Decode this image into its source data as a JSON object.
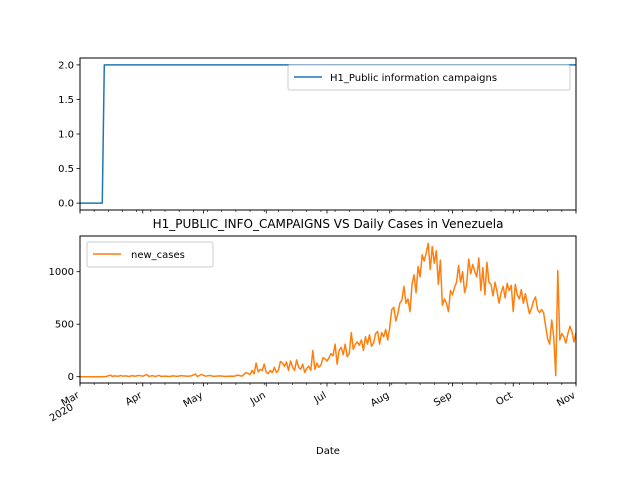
{
  "chart_data": [
    {
      "type": "line",
      "title": "",
      "xlabel": "",
      "ylabel": "",
      "ylim": [
        -0.1,
        2.1
      ],
      "yticks": [
        0.0,
        0.5,
        1.0,
        1.5,
        2.0
      ],
      "ytick_labels": [
        "0.0",
        "0.5",
        "1.0",
        "1.5",
        "2.0"
      ],
      "legend_placement": "upper-right",
      "grid": false,
      "series": [
        {
          "name": "H1_Public information campaigns",
          "color": "#1f77b4",
          "points": [
            [
              "2020-03-01",
              0
            ],
            [
              "2020-03-12",
              0
            ],
            [
              "2020-03-13",
              2
            ],
            [
              "2020-11-01",
              2
            ]
          ]
        }
      ]
    },
    {
      "type": "line",
      "title": "H1_PUBLIC_INFO_CAMPAIGNS VS Daily Cases in Venezuela",
      "xlabel": "Date",
      "ylabel": "",
      "ylim": [
        -60,
        1340
      ],
      "yticks": [
        0,
        500,
        1000
      ],
      "ytick_labels": [
        "0",
        "500",
        "1000"
      ],
      "x_range": [
        "2020-03-01",
        "2020-11-01"
      ],
      "xticks": [
        {
          "date": "2020-03-01",
          "label": "Mar",
          "sublabel": "2020"
        },
        {
          "date": "2020-04-01",
          "label": "Apr"
        },
        {
          "date": "2020-05-01",
          "label": "May"
        },
        {
          "date": "2020-06-01",
          "label": "Jun"
        },
        {
          "date": "2020-07-01",
          "label": "Jul"
        },
        {
          "date": "2020-08-01",
          "label": "Aug"
        },
        {
          "date": "2020-09-01",
          "label": "Sep"
        },
        {
          "date": "2020-10-01",
          "label": "Oct"
        },
        {
          "date": "2020-11-01",
          "label": "Nov"
        }
      ],
      "legend_placement": "upper-left",
      "grid": false,
      "series": [
        {
          "name": "new_cases",
          "color": "#ff7f0e",
          "points": [
            [
              "2020-03-01",
              0
            ],
            [
              "2020-03-10",
              0
            ],
            [
              "2020-03-14",
              2
            ],
            [
              "2020-03-16",
              15
            ],
            [
              "2020-03-17",
              2
            ],
            [
              "2020-03-18",
              8
            ],
            [
              "2020-03-20",
              4
            ],
            [
              "2020-03-21",
              12
            ],
            [
              "2020-03-22",
              5
            ],
            [
              "2020-03-24",
              8
            ],
            [
              "2020-03-25",
              2
            ],
            [
              "2020-03-27",
              10
            ],
            [
              "2020-03-28",
              4
            ],
            [
              "2020-03-30",
              12
            ],
            [
              "2020-04-01",
              5
            ],
            [
              "2020-04-03",
              20
            ],
            [
              "2020-04-04",
              3
            ],
            [
              "2020-04-06",
              10
            ],
            [
              "2020-04-07",
              2
            ],
            [
              "2020-04-09",
              12
            ],
            [
              "2020-04-10",
              3
            ],
            [
              "2020-04-12",
              6
            ],
            [
              "2020-04-14",
              2
            ],
            [
              "2020-04-16",
              8
            ],
            [
              "2020-04-18",
              3
            ],
            [
              "2020-04-20",
              10
            ],
            [
              "2020-04-23",
              4
            ],
            [
              "2020-04-25",
              8
            ],
            [
              "2020-04-27",
              25
            ],
            [
              "2020-04-28",
              2
            ],
            [
              "2020-04-30",
              22
            ],
            [
              "2020-05-02",
              5
            ],
            [
              "2020-05-04",
              12
            ],
            [
              "2020-05-06",
              3
            ],
            [
              "2020-05-09",
              8
            ],
            [
              "2020-05-12",
              2
            ],
            [
              "2020-05-14",
              6
            ],
            [
              "2020-05-16",
              4
            ],
            [
              "2020-05-18",
              15
            ],
            [
              "2020-05-20",
              5
            ],
            [
              "2020-05-22",
              40
            ],
            [
              "2020-05-24",
              20
            ],
            [
              "2020-05-25",
              60
            ],
            [
              "2020-05-26",
              28
            ],
            [
              "2020-05-27",
              130
            ],
            [
              "2020-05-28",
              45
            ],
            [
              "2020-05-29",
              70
            ],
            [
              "2020-05-30",
              58
            ],
            [
              "2020-05-31",
              120
            ],
            [
              "2020-06-01",
              40
            ],
            [
              "2020-06-02",
              30
            ],
            [
              "2020-06-03",
              60
            ],
            [
              "2020-06-04",
              38
            ],
            [
              "2020-06-05",
              90
            ],
            [
              "2020-06-06",
              40
            ],
            [
              "2020-06-07",
              60
            ],
            [
              "2020-06-08",
              145
            ],
            [
              "2020-06-09",
              130
            ],
            [
              "2020-06-10",
              100
            ],
            [
              "2020-06-11",
              140
            ],
            [
              "2020-06-12",
              60
            ],
            [
              "2020-06-13",
              150
            ],
            [
              "2020-06-14",
              90
            ],
            [
              "2020-06-15",
              60
            ],
            [
              "2020-06-16",
              160
            ],
            [
              "2020-06-17",
              90
            ],
            [
              "2020-06-18",
              70
            ],
            [
              "2020-06-19",
              120
            ],
            [
              "2020-06-20",
              40
            ],
            [
              "2020-06-21",
              80
            ],
            [
              "2020-06-22",
              100
            ],
            [
              "2020-06-23",
              60
            ],
            [
              "2020-06-24",
              250
            ],
            [
              "2020-06-25",
              70
            ],
            [
              "2020-06-26",
              130
            ],
            [
              "2020-06-27",
              90
            ],
            [
              "2020-06-28",
              110
            ],
            [
              "2020-06-29",
              180
            ],
            [
              "2020-06-30",
              170
            ],
            [
              "2020-07-01",
              150
            ],
            [
              "2020-07-02",
              180
            ],
            [
              "2020-07-03",
              220
            ],
            [
              "2020-07-04",
              200
            ],
            [
              "2020-07-05",
              310
            ],
            [
              "2020-07-06",
              120
            ],
            [
              "2020-07-07",
              250
            ],
            [
              "2020-07-08",
              280
            ],
            [
              "2020-07-09",
              210
            ],
            [
              "2020-07-10",
              310
            ],
            [
              "2020-07-11",
              190
            ],
            [
              "2020-07-12",
              220
            ],
            [
              "2020-07-13",
              420
            ],
            [
              "2020-07-14",
              260
            ],
            [
              "2020-07-15",
              310
            ],
            [
              "2020-07-16",
              330
            ],
            [
              "2020-07-17",
              300
            ],
            [
              "2020-07-18",
              350
            ],
            [
              "2020-07-19",
              250
            ],
            [
              "2020-07-20",
              380
            ],
            [
              "2020-07-21",
              310
            ],
            [
              "2020-07-22",
              400
            ],
            [
              "2020-07-23",
              290
            ],
            [
              "2020-07-24",
              320
            ],
            [
              "2020-07-25",
              410
            ],
            [
              "2020-07-26",
              430
            ],
            [
              "2020-07-27",
              310
            ],
            [
              "2020-07-28",
              420
            ],
            [
              "2020-07-29",
              380
            ],
            [
              "2020-07-30",
              450
            ],
            [
              "2020-07-31",
              350
            ],
            [
              "2020-08-01",
              470
            ],
            [
              "2020-08-02",
              640
            ],
            [
              "2020-08-03",
              660
            ],
            [
              "2020-08-04",
              530
            ],
            [
              "2020-08-05",
              600
            ],
            [
              "2020-08-06",
              700
            ],
            [
              "2020-08-07",
              730
            ],
            [
              "2020-08-08",
              860
            ],
            [
              "2020-08-09",
              700
            ],
            [
              "2020-08-10",
              740
            ],
            [
              "2020-08-11",
              620
            ],
            [
              "2020-08-12",
              880
            ],
            [
              "2020-08-13",
              970
            ],
            [
              "2020-08-14",
              800
            ],
            [
              "2020-08-15",
              1050
            ],
            [
              "2020-08-16",
              950
            ],
            [
              "2020-08-17",
              1160
            ],
            [
              "2020-08-18",
              1100
            ],
            [
              "2020-08-19",
              1180
            ],
            [
              "2020-08-20",
              1270
            ],
            [
              "2020-08-21",
              1020
            ],
            [
              "2020-08-22",
              1240
            ],
            [
              "2020-08-23",
              1080
            ],
            [
              "2020-08-24",
              1200
            ],
            [
              "2020-08-25",
              880
            ],
            [
              "2020-08-26",
              1110
            ],
            [
              "2020-08-27",
              680
            ],
            [
              "2020-08-28",
              740
            ],
            [
              "2020-08-29",
              700
            ],
            [
              "2020-08-30",
              620
            ],
            [
              "2020-08-31",
              820
            ],
            [
              "2020-09-01",
              780
            ],
            [
              "2020-09-02",
              850
            ],
            [
              "2020-09-03",
              900
            ],
            [
              "2020-09-04",
              1060
            ],
            [
              "2020-09-05",
              900
            ],
            [
              "2020-09-06",
              1000
            ],
            [
              "2020-09-07",
              800
            ],
            [
              "2020-09-08",
              880
            ],
            [
              "2020-09-09",
              1120
            ],
            [
              "2020-09-10",
              980
            ],
            [
              "2020-09-11",
              1070
            ],
            [
              "2020-09-12",
              1000
            ],
            [
              "2020-09-13",
              950
            ],
            [
              "2020-09-14",
              1130
            ],
            [
              "2020-09-15",
              820
            ],
            [
              "2020-09-16",
              1040
            ],
            [
              "2020-09-17",
              780
            ],
            [
              "2020-09-18",
              1090
            ],
            [
              "2020-09-19",
              900
            ],
            [
              "2020-09-20",
              880
            ],
            [
              "2020-09-21",
              770
            ],
            [
              "2020-09-22",
              900
            ],
            [
              "2020-09-23",
              810
            ],
            [
              "2020-09-24",
              700
            ],
            [
              "2020-09-25",
              800
            ],
            [
              "2020-09-26",
              860
            ],
            [
              "2020-09-27",
              750
            ],
            [
              "2020-09-28",
              890
            ],
            [
              "2020-09-29",
              820
            ],
            [
              "2020-09-30",
              870
            ],
            [
              "2020-10-01",
              620
            ],
            [
              "2020-10-02",
              880
            ],
            [
              "2020-10-03",
              780
            ],
            [
              "2020-10-04",
              740
            ],
            [
              "2020-10-05",
              830
            ],
            [
              "2020-10-06",
              700
            ],
            [
              "2020-10-07",
              790
            ],
            [
              "2020-10-08",
              690
            ],
            [
              "2020-10-09",
              600
            ],
            [
              "2020-10-10",
              650
            ],
            [
              "2020-10-11",
              720
            ],
            [
              "2020-10-12",
              760
            ],
            [
              "2020-10-13",
              640
            ],
            [
              "2020-10-14",
              610
            ],
            [
              "2020-10-15",
              640
            ],
            [
              "2020-10-16",
              610
            ],
            [
              "2020-10-17",
              480
            ],
            [
              "2020-10-18",
              360
            ],
            [
              "2020-10-19",
              310
            ],
            [
              "2020-10-20",
              540
            ],
            [
              "2020-10-21",
              380
            ],
            [
              "2020-10-22",
              10
            ],
            [
              "2020-10-23",
              1010
            ],
            [
              "2020-10-24",
              350
            ],
            [
              "2020-10-25",
              410
            ],
            [
              "2020-10-26",
              380
            ],
            [
              "2020-10-27",
              320
            ],
            [
              "2020-10-28",
              410
            ],
            [
              "2020-10-29",
              480
            ],
            [
              "2020-10-30",
              430
            ],
            [
              "2020-10-31",
              330
            ],
            [
              "2020-11-01",
              420
            ]
          ]
        }
      ]
    }
  ]
}
